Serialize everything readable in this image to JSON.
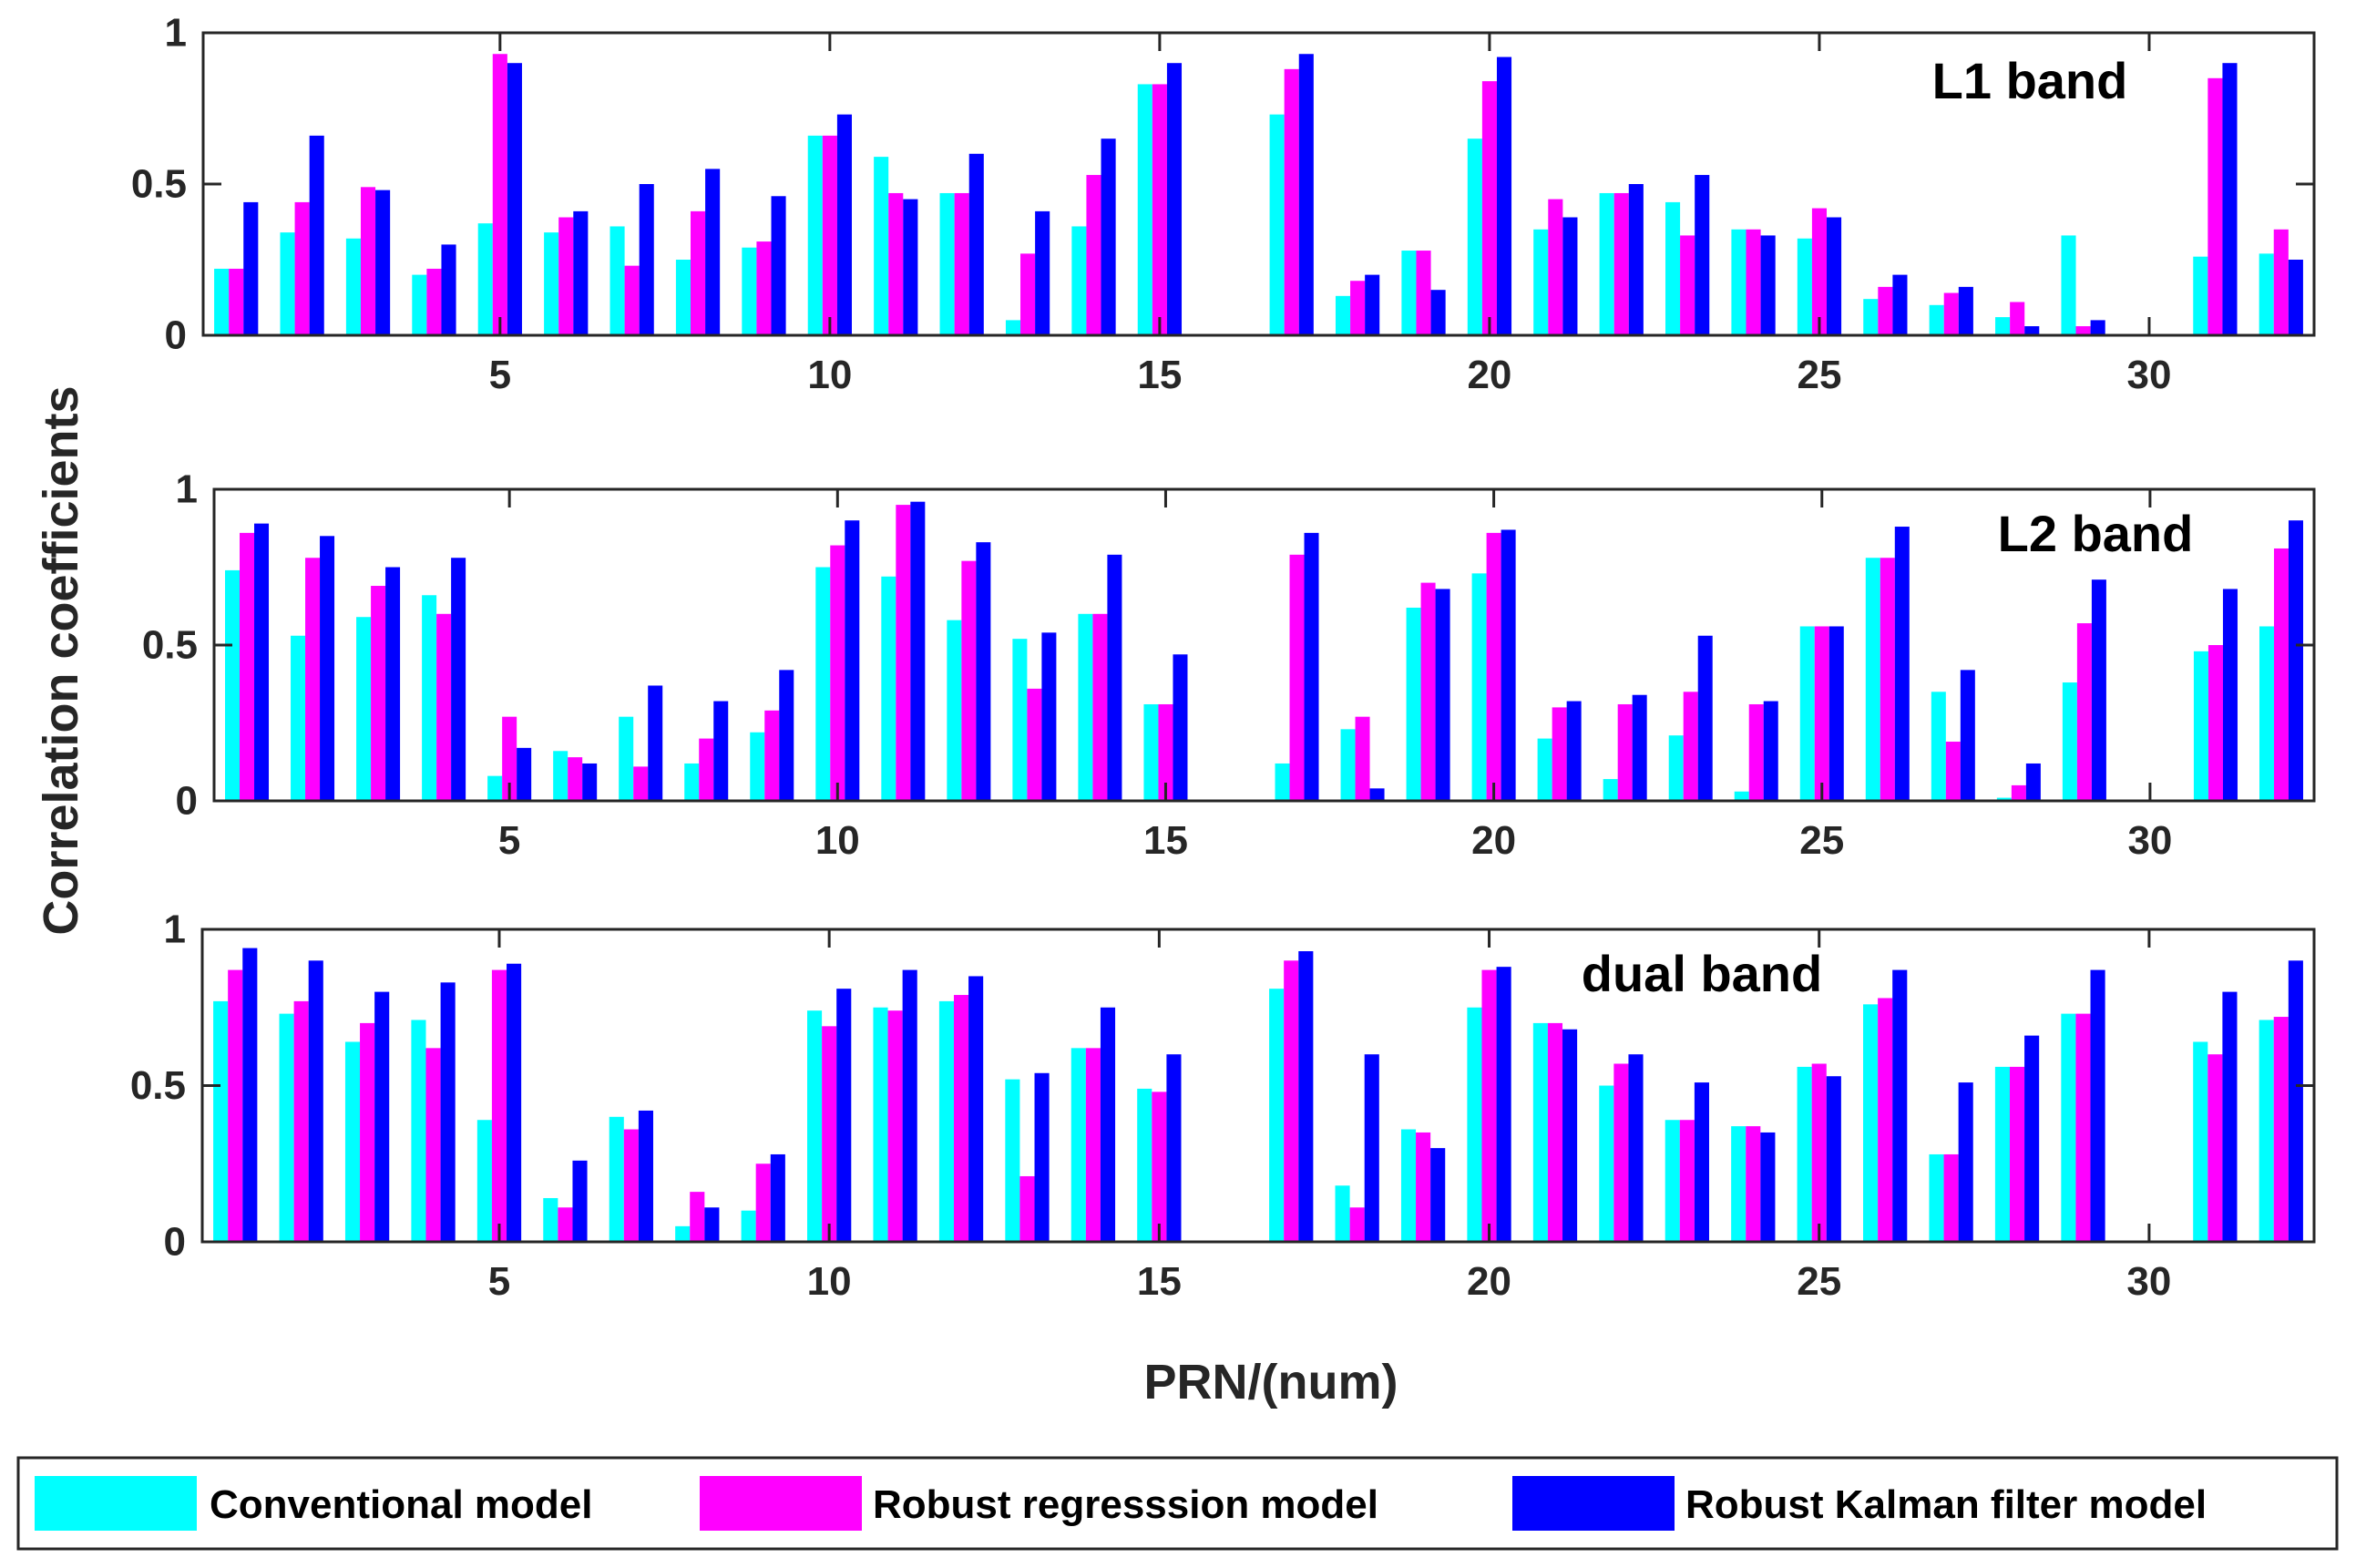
{
  "chart_data": {
    "type": "bar",
    "ylabel": "Correlation coefficients",
    "xlabel": "PRN/(num)",
    "ylim": [
      0,
      1
    ],
    "xlim": [
      0.5,
      32.5
    ],
    "xticks": [
      5,
      10,
      15,
      20,
      25,
      30
    ],
    "yticks": [
      0,
      0.5,
      1
    ],
    "ytick_labels": [
      "0",
      "0.5",
      "1"
    ],
    "legend_position": "bottom",
    "series_meta": [
      {
        "name": "Conventional model",
        "color": "#00FFFF"
      },
      {
        "name": "Robust regresssion model",
        "color": "#FF00FF"
      },
      {
        "name": "Robust Kalman filter model",
        "color": "#0000FF"
      }
    ],
    "panels": [
      {
        "title": "L1 band",
        "categories": [
          1,
          2,
          3,
          4,
          5,
          6,
          7,
          8,
          9,
          10,
          11,
          12,
          13,
          14,
          15,
          16,
          17,
          18,
          19,
          20,
          21,
          22,
          23,
          24,
          25,
          26,
          27,
          28,
          29,
          30,
          31,
          32
        ],
        "series": [
          {
            "name": "Conventional model",
            "values": [
              0.22,
              0.34,
              0.32,
              0.2,
              0.37,
              0.34,
              0.36,
              0.25,
              0.29,
              0.66,
              0.59,
              0.47,
              0.05,
              0.36,
              0.83,
              0,
              0.73,
              0.13,
              0.28,
              0.65,
              0.35,
              0.47,
              0.44,
              0.35,
              0.32,
              0.12,
              0.1,
              0.06,
              0.33,
              0,
              0.26,
              0.27
            ]
          },
          {
            "name": "Robust regresssion model",
            "values": [
              0.22,
              0.44,
              0.49,
              0.22,
              0.93,
              0.39,
              0.23,
              0.41,
              0.31,
              0.66,
              0.47,
              0.47,
              0.27,
              0.53,
              0.83,
              0,
              0.88,
              0.18,
              0.28,
              0.84,
              0.45,
              0.47,
              0.33,
              0.35,
              0.42,
              0.16,
              0.14,
              0.11,
              0.03,
              0,
              0.85,
              0.35
            ]
          },
          {
            "name": "Robust Kalman filter model",
            "values": [
              0.44,
              0.66,
              0.48,
              0.3,
              0.9,
              0.41,
              0.5,
              0.55,
              0.46,
              0.73,
              0.45,
              0.6,
              0.41,
              0.65,
              0.9,
              0,
              0.93,
              0.2,
              0.15,
              0.92,
              0.39,
              0.5,
              0.53,
              0.33,
              0.39,
              0.2,
              0.16,
              0.03,
              0.05,
              0,
              0.9,
              0.25
            ]
          }
        ]
      },
      {
        "title": "L2 band",
        "categories": [
          1,
          2,
          3,
          4,
          5,
          6,
          7,
          8,
          9,
          10,
          11,
          12,
          13,
          14,
          15,
          16,
          17,
          18,
          19,
          20,
          21,
          22,
          23,
          24,
          25,
          26,
          27,
          28,
          29,
          30,
          31,
          32
        ],
        "series": [
          {
            "name": "Conventional model",
            "values": [
              0.74,
              0.53,
              0.59,
              0.66,
              0.08,
              0.16,
              0.27,
              0.12,
              0.22,
              0.75,
              0.72,
              0.58,
              0.52,
              0.6,
              0.31,
              0,
              0.12,
              0.23,
              0.62,
              0.73,
              0.2,
              0.07,
              0.21,
              0.03,
              0.56,
              0.78,
              0.35,
              0.01,
              0.38,
              0,
              0.48,
              0.56
            ]
          },
          {
            "name": "Robust regresssion model",
            "values": [
              0.86,
              0.78,
              0.69,
              0.6,
              0.27,
              0.14,
              0.11,
              0.2,
              0.29,
              0.82,
              0.95,
              0.77,
              0.36,
              0.6,
              0.31,
              0,
              0.79,
              0.27,
              0.7,
              0.86,
              0.3,
              0.31,
              0.35,
              0.31,
              0.56,
              0.78,
              0.19,
              0.05,
              0.57,
              0,
              0.5,
              0.81
            ]
          },
          {
            "name": "Robust Kalman filter model",
            "values": [
              0.89,
              0.85,
              0.75,
              0.78,
              0.17,
              0.12,
              0.37,
              0.32,
              0.42,
              0.9,
              0.96,
              0.83,
              0.54,
              0.79,
              0.47,
              0,
              0.86,
              0.04,
              0.68,
              0.87,
              0.32,
              0.34,
              0.53,
              0.32,
              0.56,
              0.88,
              0.42,
              0.12,
              0.71,
              0,
              0.68,
              0.9
            ]
          }
        ]
      },
      {
        "title": "dual band",
        "categories": [
          1,
          2,
          3,
          4,
          5,
          6,
          7,
          8,
          9,
          10,
          11,
          12,
          13,
          14,
          15,
          16,
          17,
          18,
          19,
          20,
          21,
          22,
          23,
          24,
          25,
          26,
          27,
          28,
          29,
          30,
          31,
          32
        ],
        "series": [
          {
            "name": "Conventional model",
            "values": [
              0.77,
              0.73,
              0.64,
              0.71,
              0.39,
              0.14,
              0.4,
              0.05,
              0.1,
              0.74,
              0.75,
              0.77,
              0.52,
              0.62,
              0.49,
              0,
              0.81,
              0.18,
              0.36,
              0.75,
              0.7,
              0.5,
              0.39,
              0.37,
              0.56,
              0.76,
              0.28,
              0.56,
              0.73,
              0,
              0.64,
              0.71
            ]
          },
          {
            "name": "Robust regresssion model",
            "values": [
              0.87,
              0.77,
              0.7,
              0.62,
              0.87,
              0.11,
              0.36,
              0.16,
              0.25,
              0.69,
              0.74,
              0.79,
              0.21,
              0.62,
              0.48,
              0,
              0.9,
              0.11,
              0.35,
              0.87,
              0.7,
              0.57,
              0.39,
              0.37,
              0.57,
              0.78,
              0.28,
              0.56,
              0.73,
              0,
              0.6,
              0.72
            ]
          },
          {
            "name": "Robust Kalman filter model",
            "values": [
              0.94,
              0.9,
              0.8,
              0.83,
              0.89,
              0.26,
              0.42,
              0.11,
              0.28,
              0.81,
              0.87,
              0.85,
              0.54,
              0.75,
              0.6,
              0,
              0.93,
              0.6,
              0.3,
              0.88,
              0.68,
              0.6,
              0.51,
              0.35,
              0.53,
              0.87,
              0.51,
              0.66,
              0.87,
              0,
              0.8,
              0.9
            ]
          }
        ]
      }
    ]
  }
}
